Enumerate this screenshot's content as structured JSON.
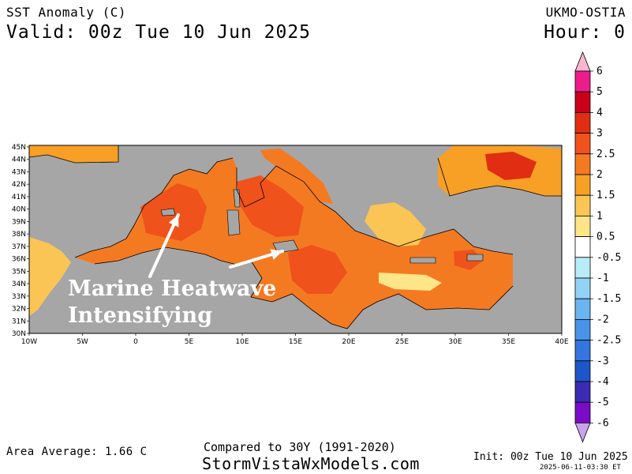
{
  "header": {
    "title": "SST Anomaly (C)",
    "valid": "Valid: 00z Tue 10 Jun 2025",
    "model": "UKMO-OSTIA",
    "hour": "Hour: 0"
  },
  "annotation": {
    "line1": "Marine Heatwave",
    "line2": "Intensifying"
  },
  "footer": {
    "area_average": "Area Average: 1.66 C",
    "compared": "Compared to 30Y (1991-2020)",
    "website": "StormVistaWxModels.com",
    "init": "Init: 00z Tue 10 Jun 2025",
    "timestamp": "2025-06-11-03:30 ET"
  },
  "axes": {
    "lat_labels": [
      "45N",
      "44N",
      "43N",
      "42N",
      "41N",
      "40N",
      "39N",
      "38N",
      "37N",
      "36N",
      "35N",
      "34N",
      "33N",
      "32N",
      "31N",
      "30N"
    ],
    "lon_labels": [
      "10W",
      "5W",
      "0",
      "5E",
      "10E",
      "15E",
      "20E",
      "25E",
      "30E",
      "35E",
      "40E"
    ]
  },
  "legend": {
    "labels": [
      "6",
      "5",
      "4",
      "3",
      "2.5",
      "2",
      "1.5",
      "1",
      "0.5",
      "-0.5",
      "-1",
      "-1.5",
      "-2",
      "-2.5",
      "-3",
      "-4",
      "-5",
      "-6"
    ],
    "colors": [
      "#ec1d8a",
      "#c8001c",
      "#e12d12",
      "#f0521c",
      "#f47a22",
      "#f7a025",
      "#fac554",
      "#fde588",
      "#ffffff",
      "#b9ecf6",
      "#93d2f5",
      "#6cb4ef",
      "#4a93e8",
      "#3475df",
      "#1e55c8",
      "#3b2bb5",
      "#7a0bc7"
    ],
    "top_arrow_color": "#f7b7d0",
    "bottom_arrow_color": "#c8a2ea"
  },
  "colors": {
    "land": "#a6a6a6",
    "strong": "#f0521c",
    "moderate": "#f47a22",
    "weak": "#f7a025",
    "light": "#fac554",
    "pale": "#fde588",
    "hot": "#e12d12"
  }
}
